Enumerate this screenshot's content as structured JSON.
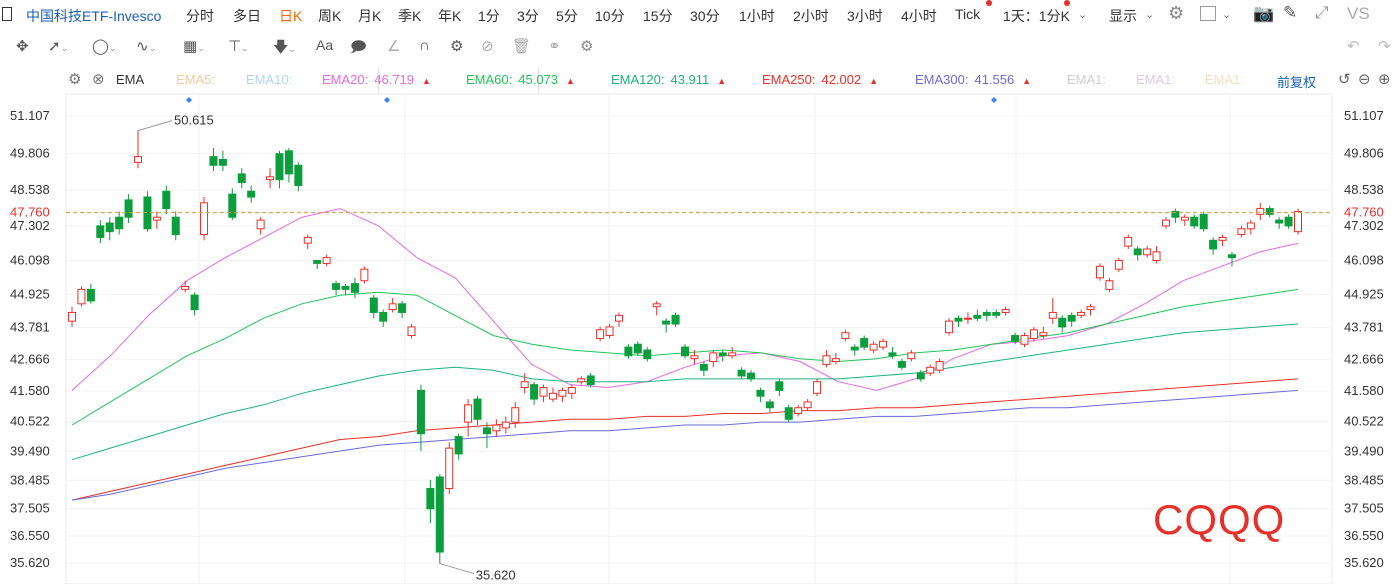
{
  "header": {
    "title": "中国科技ETF-Invesco",
    "periods": [
      "分时",
      "多日",
      "日K",
      "周K",
      "月K",
      "季K",
      "年K",
      "1分",
      "3分",
      "5分",
      "10分",
      "15分",
      "30分",
      "1小时",
      "2小时",
      "3小时",
      "4小时",
      "Tick"
    ],
    "active_period": "日K",
    "multi_label": "1天：1分K",
    "display_label": "显示",
    "vs_label": "VS"
  },
  "ema": {
    "label": "EMA",
    "items": [
      {
        "name": "EMA5:",
        "value": "",
        "color": "#f5c9a0"
      },
      {
        "name": "EMA10:",
        "value": "",
        "color": "#b3d4f5"
      },
      {
        "name": "EMA20:",
        "value": "46.719",
        "color": "#e36be0",
        "arrow": "▲"
      },
      {
        "name": "EMA60:",
        "value": "45.073",
        "color": "#21c45a",
        "arrow": "▲"
      },
      {
        "name": "EMA120:",
        "value": "43.911",
        "color": "#1db47c",
        "arrow": "▲"
      },
      {
        "name": "EMA250:",
        "value": "42.002",
        "color": "#e8302a",
        "arrow": "▲"
      },
      {
        "name": "EMA300:",
        "value": "41.556",
        "color": "#6b6bd8",
        "arrow": "▲"
      },
      {
        "name": "EMA1:",
        "value": "",
        "color": "#d0d0d0"
      },
      {
        "name": "EMA1:",
        "value": "",
        "color": "#e0c8e8"
      },
      {
        "name": "EMA1:",
        "value": "",
        "color": "#f5dfc0"
      }
    ],
    "adjust_label": "前复权"
  },
  "chart": {
    "y_ticks": [
      "51.107",
      "49.806",
      "48.538",
      "47.302",
      "46.098",
      "44.925",
      "43.781",
      "42.666",
      "41.580",
      "40.522",
      "39.490",
      "38.485",
      "37.505",
      "36.550",
      "35.620"
    ],
    "current_price": "47.760",
    "high_label": "50.615",
    "low_label": "35.620",
    "watermark": "CQQQ",
    "up_color": "#e8302a",
    "down_color": "#0b9e3c"
  },
  "chart_data": {
    "type": "candlestick",
    "ylim": [
      35.3,
      51.5
    ],
    "candles": [
      [
        44.0,
        44.3,
        43.8,
        44.5
      ],
      [
        44.6,
        45.1,
        44.5,
        45.2
      ],
      [
        45.1,
        44.7,
        44.6,
        45.3
      ],
      [
        47.3,
        46.9,
        46.7,
        47.5
      ],
      [
        47.4,
        47.1,
        46.8,
        47.6
      ],
      [
        47.6,
        47.2,
        47.0,
        47.8
      ],
      [
        48.2,
        47.6,
        47.4,
        48.4
      ],
      [
        49.5,
        49.7,
        49.3,
        50.6
      ],
      [
        48.3,
        47.2,
        47.1,
        48.5
      ],
      [
        47.5,
        47.6,
        47.2,
        47.8
      ],
      [
        48.5,
        47.9,
        47.7,
        48.7
      ],
      [
        47.6,
        47.0,
        46.8,
        47.8
      ],
      [
        45.1,
        45.2,
        45.0,
        45.4
      ],
      [
        44.9,
        44.4,
        44.2,
        45.0
      ],
      [
        47.0,
        48.1,
        46.8,
        48.3
      ],
      [
        49.7,
        49.4,
        49.2,
        50.0
      ],
      [
        49.6,
        49.4,
        49.2,
        49.9
      ],
      [
        48.4,
        47.6,
        47.5,
        48.6
      ],
      [
        49.1,
        48.8,
        48.6,
        49.3
      ],
      [
        48.5,
        48.3,
        48.1,
        48.7
      ],
      [
        47.2,
        47.5,
        47.0,
        47.6
      ],
      [
        48.9,
        49.0,
        48.6,
        49.3
      ],
      [
        49.8,
        48.9,
        48.6,
        49.9
      ],
      [
        49.9,
        49.1,
        48.8,
        50.0
      ],
      [
        49.4,
        48.7,
        48.5,
        49.5
      ],
      [
        46.7,
        46.9,
        46.5,
        47.0
      ],
      [
        46.1,
        46.0,
        45.8,
        46.1
      ],
      [
        46.0,
        46.2,
        45.9,
        46.3
      ],
      [
        45.3,
        45.1,
        44.9,
        45.4
      ],
      [
        45.2,
        45.1,
        44.9,
        45.3
      ],
      [
        45.3,
        45.0,
        44.8,
        45.5
      ],
      [
        45.4,
        45.8,
        45.3,
        45.9
      ],
      [
        44.8,
        44.3,
        44.1,
        44.9
      ],
      [
        44.3,
        44.0,
        43.8,
        44.4
      ],
      [
        44.4,
        44.6,
        44.3,
        44.8
      ],
      [
        44.6,
        44.3,
        44.1,
        44.7
      ],
      [
        43.5,
        43.8,
        43.4,
        43.9
      ],
      [
        41.6,
        40.1,
        39.5,
        41.8
      ],
      [
        38.2,
        37.5,
        37.0,
        38.5
      ],
      [
        38.6,
        36.0,
        35.6,
        38.7
      ],
      [
        38.2,
        39.6,
        38.0,
        39.8
      ],
      [
        40.0,
        39.4,
        39.2,
        40.1
      ],
      [
        40.5,
        41.1,
        40.0,
        41.3
      ],
      [
        41.3,
        40.6,
        40.4,
        41.4
      ],
      [
        40.3,
        40.1,
        39.6,
        40.5
      ],
      [
        40.2,
        40.4,
        40.0,
        40.6
      ],
      [
        40.3,
        40.5,
        40.1,
        40.7
      ],
      [
        40.5,
        41.0,
        40.3,
        41.2
      ],
      [
        41.7,
        41.9,
        41.5,
        42.2
      ],
      [
        41.8,
        41.3,
        41.1,
        41.9
      ],
      [
        41.4,
        41.7,
        41.2,
        41.8
      ],
      [
        41.3,
        41.5,
        41.2,
        41.7
      ],
      [
        41.4,
        41.6,
        41.2,
        41.7
      ],
      [
        41.5,
        41.7,
        41.3,
        41.8
      ],
      [
        41.9,
        42.0,
        41.8,
        42.1
      ],
      [
        42.1,
        41.8,
        41.7,
        42.2
      ],
      [
        43.4,
        43.7,
        43.3,
        43.8
      ],
      [
        43.5,
        43.8,
        43.4,
        43.9
      ],
      [
        44.0,
        44.2,
        43.8,
        44.3
      ],
      [
        43.1,
        42.8,
        42.7,
        43.2
      ],
      [
        43.2,
        42.9,
        42.8,
        43.3
      ],
      [
        43.0,
        42.7,
        42.6,
        43.1
      ],
      [
        44.5,
        44.6,
        44.2,
        44.7
      ],
      [
        44.0,
        43.9,
        43.6,
        44.1
      ],
      [
        44.2,
        43.9,
        43.8,
        44.3
      ],
      [
        43.1,
        42.8,
        42.7,
        43.2
      ],
      [
        42.7,
        42.8,
        42.5,
        43.0
      ],
      [
        42.5,
        42.3,
        42.1,
        42.6
      ],
      [
        42.6,
        42.9,
        42.4,
        43.0
      ],
      [
        42.9,
        42.8,
        42.6,
        43.0
      ],
      [
        42.8,
        42.9,
        42.7,
        43.1
      ],
      [
        42.3,
        42.1,
        42.0,
        42.4
      ],
      [
        42.2,
        42.0,
        41.9,
        42.3
      ],
      [
        41.6,
        41.4,
        41.2,
        41.7
      ],
      [
        41.2,
        41.0,
        40.8,
        41.3
      ],
      [
        41.9,
        41.6,
        41.4,
        42.0
      ],
      [
        41.0,
        40.6,
        40.5,
        41.1
      ],
      [
        40.8,
        41.0,
        40.7,
        41.1
      ],
      [
        41.0,
        41.2,
        40.9,
        41.3
      ],
      [
        41.5,
        41.9,
        41.4,
        42.0
      ],
      [
        42.5,
        42.8,
        42.4,
        43.0
      ],
      [
        42.6,
        42.7,
        42.5,
        42.9
      ],
      [
        43.4,
        43.6,
        43.3,
        43.7
      ],
      [
        43.1,
        43.0,
        42.8,
        43.2
      ],
      [
        43.4,
        43.1,
        43.0,
        43.5
      ],
      [
        43.0,
        43.2,
        42.9,
        43.3
      ],
      [
        43.1,
        43.3,
        43.0,
        43.4
      ],
      [
        42.9,
        42.8,
        42.7,
        43.1
      ],
      [
        42.6,
        42.4,
        42.3,
        42.7
      ],
      [
        42.7,
        42.9,
        42.6,
        43.0
      ],
      [
        42.2,
        42.0,
        41.9,
        42.3
      ],
      [
        42.2,
        42.4,
        42.1,
        42.5
      ],
      [
        42.3,
        42.6,
        42.2,
        42.7
      ],
      [
        43.6,
        44.0,
        43.5,
        44.1
      ],
      [
        44.1,
        44.0,
        43.8,
        44.2
      ],
      [
        44.1,
        44.1,
        43.9,
        44.3
      ],
      [
        44.2,
        44.1,
        44.0,
        44.4
      ],
      [
        44.3,
        44.2,
        44.0,
        44.4
      ],
      [
        44.3,
        44.2,
        44.1,
        44.4
      ],
      [
        44.3,
        44.4,
        44.2,
        44.5
      ],
      [
        43.5,
        43.3,
        43.2,
        43.6
      ],
      [
        43.2,
        43.5,
        43.1,
        43.6
      ],
      [
        43.4,
        43.7,
        43.3,
        43.8
      ],
      [
        43.5,
        43.6,
        43.4,
        43.8
      ],
      [
        44.1,
        44.3,
        43.9,
        44.8
      ],
      [
        44.1,
        43.8,
        43.6,
        44.2
      ],
      [
        44.2,
        44.0,
        43.8,
        44.3
      ],
      [
        44.2,
        44.3,
        44.1,
        44.4
      ],
      [
        44.4,
        44.5,
        44.2,
        44.6
      ],
      [
        45.5,
        45.9,
        45.4,
        46.0
      ],
      [
        45.1,
        45.4,
        45.0,
        45.5
      ],
      [
        45.8,
        46.1,
        45.7,
        46.2
      ],
      [
        46.6,
        46.9,
        46.5,
        47.0
      ],
      [
        46.5,
        46.3,
        46.1,
        46.6
      ],
      [
        46.3,
        46.5,
        46.2,
        46.6
      ],
      [
        46.1,
        46.4,
        46.0,
        46.6
      ],
      [
        47.3,
        47.5,
        47.2,
        47.6
      ],
      [
        47.8,
        47.6,
        47.4,
        47.9
      ],
      [
        47.5,
        47.6,
        47.3,
        47.7
      ],
      [
        47.6,
        47.3,
        47.2,
        47.7
      ],
      [
        47.7,
        47.2,
        47.1,
        47.8
      ],
      [
        46.8,
        46.5,
        46.3,
        46.9
      ],
      [
        46.8,
        46.9,
        46.6,
        47.0
      ],
      [
        46.3,
        46.2,
        45.9,
        46.4
      ],
      [
        47.0,
        47.2,
        46.9,
        47.3
      ],
      [
        47.2,
        47.4,
        47.0,
        47.5
      ],
      [
        47.7,
        47.9,
        47.5,
        48.1
      ],
      [
        47.9,
        47.7,
        47.6,
        48.0
      ],
      [
        47.5,
        47.4,
        47.2,
        47.6
      ],
      [
        47.6,
        47.3,
        47.2,
        47.7
      ],
      [
        47.1,
        47.8,
        47.0,
        47.9
      ]
    ],
    "ema_series": [
      {
        "name": "EMA20",
        "color": "#e36be0",
        "values": [
          41.6,
          42.8,
          44.2,
          45.4,
          46.2,
          46.9,
          47.6,
          47.9,
          47.3,
          46.2,
          45.5,
          44.0,
          42.5,
          41.8,
          41.7,
          41.9,
          42.4,
          42.8,
          42.9,
          42.6,
          41.9,
          41.6,
          42.0,
          42.7,
          43.2,
          43.3,
          43.5,
          43.9,
          44.6,
          45.4,
          45.9,
          46.4,
          46.7
        ]
      },
      {
        "name": "EMA60",
        "color": "#21c45a",
        "values": [
          40.4,
          41.2,
          42.0,
          42.8,
          43.4,
          44.1,
          44.6,
          44.9,
          45.0,
          44.9,
          44.2,
          43.5,
          43.2,
          43.0,
          42.9,
          42.8,
          42.9,
          43.0,
          42.9,
          42.7,
          42.6,
          42.7,
          42.9,
          43.0,
          43.2,
          43.4,
          43.6,
          43.9,
          44.2,
          44.5,
          44.7,
          44.9,
          45.1
        ]
      },
      {
        "name": "EMA120",
        "color": "#1db47c",
        "values": [
          39.2,
          39.6,
          40.0,
          40.4,
          40.8,
          41.1,
          41.5,
          41.8,
          42.1,
          42.3,
          42.4,
          42.3,
          42.0,
          41.9,
          41.9,
          41.9,
          42.0,
          42.0,
          42.0,
          42.0,
          42.0,
          42.1,
          42.2,
          42.4,
          42.6,
          42.8,
          43.0,
          43.2,
          43.4,
          43.6,
          43.7,
          43.8,
          43.9
        ]
      },
      {
        "name": "EMA250",
        "color": "#e8302a",
        "values": [
          37.8,
          38.1,
          38.4,
          38.7,
          39.0,
          39.3,
          39.6,
          39.9,
          40.0,
          40.2,
          40.3,
          40.4,
          40.5,
          40.6,
          40.6,
          40.7,
          40.7,
          40.8,
          40.8,
          40.9,
          40.9,
          41.0,
          41.0,
          41.1,
          41.2,
          41.3,
          41.4,
          41.5,
          41.6,
          41.7,
          41.8,
          41.9,
          42.0
        ]
      },
      {
        "name": "EMA300",
        "color": "#6b6bd8",
        "values": [
          37.8,
          38.0,
          38.3,
          38.6,
          38.9,
          39.1,
          39.3,
          39.5,
          39.7,
          39.8,
          39.9,
          40.0,
          40.1,
          40.2,
          40.2,
          40.3,
          40.4,
          40.4,
          40.5,
          40.5,
          40.6,
          40.7,
          40.7,
          40.8,
          40.9,
          41.0,
          41.0,
          41.1,
          41.2,
          41.3,
          41.4,
          41.5,
          41.6
        ]
      }
    ]
  }
}
